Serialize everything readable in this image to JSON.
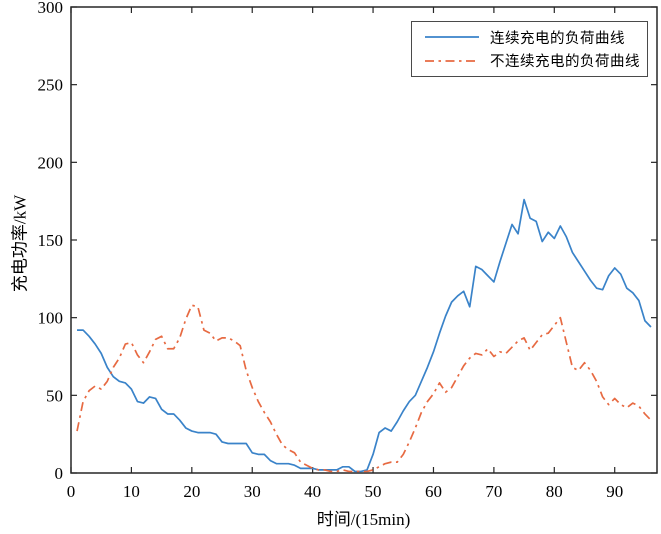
{
  "chart_data": {
    "type": "line",
    "title": "",
    "xlabel": "时间/(15min)",
    "ylabel": "充电功率/kW",
    "xlim": [
      0,
      97
    ],
    "ylim": [
      0,
      300
    ],
    "x_ticks": [
      0,
      10,
      20,
      30,
      40,
      50,
      60,
      70,
      80,
      90
    ],
    "y_ticks": [
      0,
      50,
      100,
      150,
      200,
      250,
      300
    ],
    "grid": false,
    "legend_position": "top-right",
    "x_start": 1,
    "x_step": 1,
    "series": [
      {
        "name": "连续充电的负荷曲线",
        "color": "#3a83c9",
        "style": "solid",
        "values": [
          92,
          92,
          88,
          83,
          77,
          68,
          62,
          59,
          58,
          54,
          46,
          45,
          49,
          48,
          41,
          38,
          38,
          34,
          29,
          27,
          26,
          26,
          26,
          25,
          20,
          19,
          19,
          19,
          19,
          13,
          12,
          12,
          8,
          6,
          6,
          6,
          5,
          3,
          3,
          3,
          2,
          2,
          2,
          2,
          4,
          4,
          1,
          1,
          2,
          12,
          26,
          29,
          27,
          33,
          40,
          46,
          50,
          59,
          68,
          78,
          90,
          101,
          110,
          114,
          117,
          107,
          133,
          131,
          127,
          123,
          136,
          148,
          160,
          154,
          176,
          164,
          162,
          149,
          155,
          151,
          159,
          152,
          142,
          136,
          130,
          124,
          119,
          118,
          127,
          132,
          128,
          119,
          116,
          111,
          98,
          94
        ]
      },
      {
        "name": "不连续充电的负荷曲线",
        "color": "#e76a42",
        "style": "dashdot",
        "values": [
          27,
          46,
          53,
          56,
          54,
          59,
          68,
          74,
          83,
          84,
          76,
          71,
          78,
          86,
          88,
          80,
          80,
          87,
          99,
          108,
          107,
          92,
          90,
          85,
          87,
          87,
          85,
          82,
          66,
          55,
          46,
          39,
          33,
          25,
          18,
          15,
          13,
          7,
          5,
          3,
          2,
          2,
          1,
          1,
          2,
          1,
          1,
          1,
          1,
          2,
          4,
          6,
          7,
          7,
          12,
          20,
          29,
          39,
          46,
          51,
          58,
          52,
          55,
          62,
          69,
          74,
          77,
          76,
          80,
          75,
          78,
          77,
          81,
          85,
          87,
          79,
          84,
          89,
          90,
          95,
          100,
          84,
          68,
          66,
          71,
          66,
          59,
          49,
          44,
          48,
          44,
          42,
          45,
          43,
          38,
          34
        ]
      }
    ],
    "axis_color": "#262626",
    "tick_label_color": "#000000"
  }
}
